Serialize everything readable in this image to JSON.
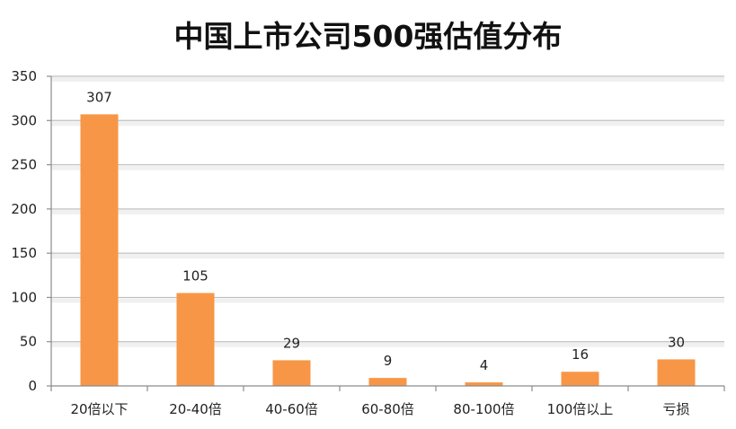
{
  "chart_data": {
    "type": "bar",
    "title": "中国上市公司500强估值分布",
    "categories": [
      "20倍以下",
      "20-40倍",
      "40-60倍",
      "60-80倍",
      "80-100倍",
      "100倍以上",
      "亏损"
    ],
    "values": [
      307,
      105,
      29,
      9,
      4,
      16,
      30
    ],
    "data_labels": [
      "307",
      "105",
      "29",
      "9",
      "4",
      "16",
      "30"
    ],
    "yticks": [
      "0",
      "50",
      "100",
      "150",
      "200",
      "250",
      "300",
      "350"
    ],
    "ylim": [
      0,
      350
    ],
    "grid": true,
    "bar_color": "#F79646",
    "grid_color": "#BFBFBF"
  }
}
